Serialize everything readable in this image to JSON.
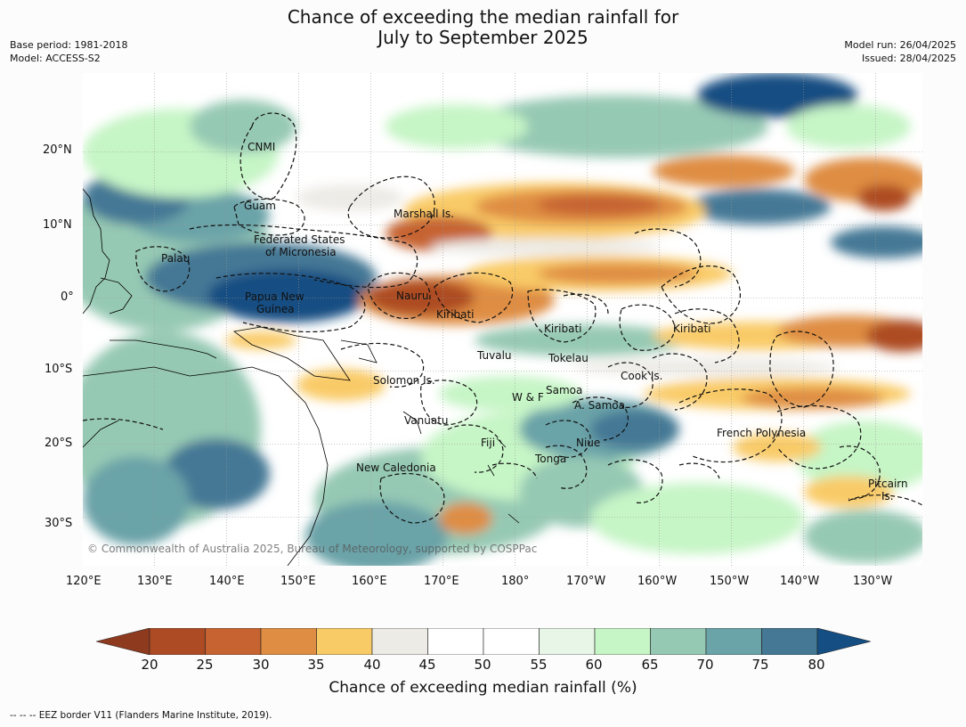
{
  "title": {
    "line1": "Chance of exceeding the median rainfall for",
    "line2": "July to September 2025"
  },
  "meta": {
    "base_period": "Base period: 1981-2018",
    "model": "Model: ACCESS-S2",
    "model_run": "Model run: 26/04/2025",
    "issued": "Issued: 28/04/2025"
  },
  "map": {
    "lon_ticks": [
      "120°E",
      "130°E",
      "140°E",
      "150°E",
      "160°E",
      "170°E",
      "180°",
      "170°W",
      "160°W",
      "150°W",
      "140°W",
      "130°W"
    ],
    "lat_ticks": [
      "20°N",
      "10°N",
      "0°",
      "10°S",
      "20°S",
      "30°S"
    ],
    "place_labels": [
      {
        "text": "CNMI"
      },
      {
        "text": "Guam"
      },
      {
        "text": "Marshall Is."
      },
      {
        "text": "Federated States"
      },
      {
        "text": "of Micronesia"
      },
      {
        "text": "Palau"
      },
      {
        "text": "Papua New"
      },
      {
        "text": "Guinea"
      },
      {
        "text": "Nauru"
      },
      {
        "text": "Kiribati"
      },
      {
        "text": "Kiribati"
      },
      {
        "text": "Kiribati"
      },
      {
        "text": "Tuvalu"
      },
      {
        "text": "Tokelau"
      },
      {
        "text": "Cook Is."
      },
      {
        "text": "Solomon Is."
      },
      {
        "text": "Samoa"
      },
      {
        "text": "W & F"
      },
      {
        "text": "A. Samoa"
      },
      {
        "text": "Vanuatu"
      },
      {
        "text": "Fiji"
      },
      {
        "text": "Niue"
      },
      {
        "text": "French Polynesia"
      },
      {
        "text": "Tonga"
      },
      {
        "text": "New Caledonia"
      },
      {
        "text": "Pitcairn"
      },
      {
        "text": "Is."
      }
    ],
    "credit": "© Commonwealth of Australia 2025, Bureau of Meteorology, supported by COSPPac"
  },
  "colorbar": {
    "ticks": [
      "20",
      "25",
      "30",
      "35",
      "40",
      "45",
      "50",
      "55",
      "60",
      "65",
      "70",
      "75",
      "80"
    ],
    "colors": [
      "#8e3a1f",
      "#ad4b24",
      "#c66330",
      "#df8d43",
      "#f9cb67",
      "#edebe6",
      "#ffffff",
      "#ffffff",
      "#e8f6e8",
      "#c6f5c6",
      "#96c9b4",
      "#6aa3a8",
      "#447895",
      "#154e82"
    ],
    "title": "Chance of exceeding median rainfall (%)"
  },
  "footer": "-- -- -- EEZ border V11 (Flanders Marine Institute, 2019)."
}
